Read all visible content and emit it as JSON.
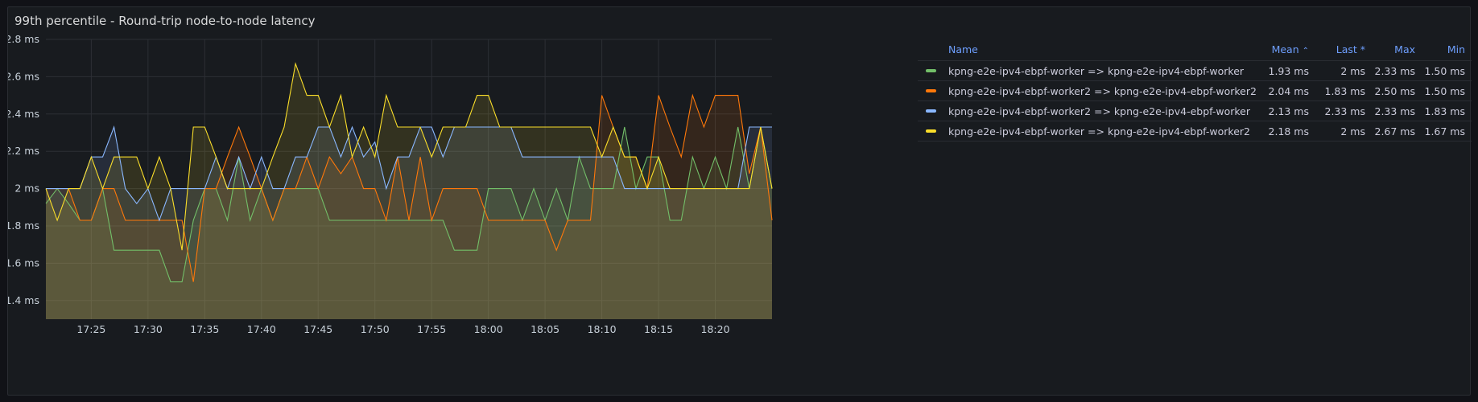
{
  "panel": {
    "title": "99th percentile - Round-trip node-to-node latency"
  },
  "chart_data": {
    "type": "area",
    "title": "99th percentile - Round-trip node-to-node latency",
    "unit": "ms",
    "ylim": [
      1.3,
      2.8
    ],
    "yticks": [
      1.4,
      1.6,
      1.8,
      2.0,
      2.2,
      2.4,
      2.6,
      2.8
    ],
    "ytick_labels": [
      "1.4 ms",
      "1.6 ms",
      "1.8 ms",
      "2 ms",
      "2.2 ms",
      "2.4 ms",
      "2.6 ms",
      "2.8 ms"
    ],
    "x_start": "17:21",
    "x_end": "18:20",
    "x_step_minutes": 1,
    "xtick_labels": [
      "17:25",
      "17:30",
      "17:35",
      "17:40",
      "17:45",
      "17:50",
      "17:55",
      "18:00",
      "18:05",
      "18:10",
      "18:15",
      "18:20"
    ],
    "grid": true,
    "legend_position": "right",
    "series": [
      {
        "name": "kpng-e2e-ipv4-ebpf-worker => kpng-e2e-ipv4-ebpf-worker",
        "color": "#73bf69",
        "values": [
          1.92,
          2.0,
          1.92,
          1.83,
          1.83,
          2.0,
          1.67,
          1.67,
          1.67,
          1.67,
          1.67,
          1.5,
          1.5,
          1.83,
          2.0,
          2.0,
          1.83,
          2.17,
          1.83,
          2.0,
          1.83,
          2.0,
          2.0,
          2.0,
          2.0,
          1.83,
          1.83,
          1.83,
          1.83,
          1.83,
          1.83,
          1.83,
          1.83,
          1.83,
          1.83,
          1.83,
          1.67,
          1.67,
          1.67,
          2.0,
          2.0,
          2.0,
          1.83,
          2.0,
          1.83,
          2.0,
          1.83,
          2.17,
          2.0,
          2.0,
          2.0,
          2.33,
          2.0,
          2.17,
          2.17,
          1.83,
          1.83,
          2.17,
          2.0,
          2.17,
          2.0,
          2.33,
          2.0,
          2.33,
          2.0
        ]
      },
      {
        "name": "kpng-e2e-ipv4-ebpf-worker2 => kpng-e2e-ipv4-ebpf-worker2",
        "color": "#ff780a",
        "values": [
          2.0,
          2.0,
          2.0,
          1.83,
          1.83,
          2.0,
          2.0,
          1.83,
          1.83,
          1.83,
          1.83,
          1.83,
          1.83,
          1.5,
          2.0,
          2.0,
          2.17,
          2.33,
          2.17,
          2.0,
          1.83,
          2.0,
          2.0,
          2.17,
          2.0,
          2.17,
          2.08,
          2.17,
          2.0,
          2.0,
          1.83,
          2.17,
          1.83,
          2.17,
          1.83,
          2.0,
          2.0,
          2.0,
          2.0,
          1.83,
          1.83,
          1.83,
          1.83,
          1.83,
          1.83,
          1.67,
          1.83,
          1.83,
          1.83,
          2.5,
          2.33,
          2.17,
          2.17,
          2.0,
          2.5,
          2.33,
          2.17,
          2.5,
          2.33,
          2.5,
          2.5,
          2.5,
          2.08,
          2.33,
          1.83
        ]
      },
      {
        "name": "kpng-e2e-ipv4-ebpf-worker2 => kpng-e2e-ipv4-ebpf-worker",
        "color": "#8ab8ff",
        "values": [
          2.0,
          2.0,
          2.0,
          2.0,
          2.17,
          2.17,
          2.33,
          2.0,
          1.92,
          2.0,
          1.83,
          2.0,
          2.0,
          2.0,
          2.0,
          2.17,
          2.0,
          2.17,
          2.0,
          2.17,
          2.0,
          2.0,
          2.17,
          2.17,
          2.33,
          2.33,
          2.17,
          2.33,
          2.17,
          2.25,
          2.0,
          2.17,
          2.17,
          2.33,
          2.33,
          2.17,
          2.33,
          2.33,
          2.33,
          2.33,
          2.33,
          2.33,
          2.17,
          2.17,
          2.17,
          2.17,
          2.17,
          2.17,
          2.17,
          2.17,
          2.17,
          2.0,
          2.0,
          2.0,
          2.0,
          2.0,
          2.0,
          2.0,
          2.0,
          2.0,
          2.0,
          2.0,
          2.33,
          2.33,
          2.33
        ]
      },
      {
        "name": "kpng-e2e-ipv4-ebpf-worker => kpng-e2e-ipv4-ebpf-worker2",
        "color": "#fade2a",
        "values": [
          2.0,
          1.83,
          2.0,
          2.0,
          2.17,
          2.0,
          2.17,
          2.17,
          2.17,
          2.0,
          2.17,
          2.0,
          1.67,
          2.33,
          2.33,
          2.17,
          2.0,
          2.0,
          2.0,
          2.0,
          2.17,
          2.33,
          2.67,
          2.5,
          2.5,
          2.33,
          2.5,
          2.17,
          2.33,
          2.17,
          2.5,
          2.33,
          2.33,
          2.33,
          2.17,
          2.33,
          2.33,
          2.33,
          2.5,
          2.5,
          2.33,
          2.33,
          2.33,
          2.33,
          2.33,
          2.33,
          2.33,
          2.33,
          2.33,
          2.17,
          2.33,
          2.17,
          2.17,
          2.0,
          2.17,
          2.0,
          2.0,
          2.0,
          2.0,
          2.0,
          2.0,
          2.0,
          2.0,
          2.33,
          2.0
        ]
      }
    ]
  },
  "legend": {
    "headers": {
      "name": "Name",
      "mean": "Mean",
      "last": "Last *",
      "max": "Max",
      "min": "Min"
    },
    "sort_indicator": "⌃",
    "rows": [
      {
        "name": "kpng-e2e-ipv4-ebpf-worker => kpng-e2e-ipv4-ebpf-worker",
        "color": "#73bf69",
        "mean": "1.93 ms",
        "last": "2 ms",
        "max": "2.33 ms",
        "min": "1.50 ms"
      },
      {
        "name": "kpng-e2e-ipv4-ebpf-worker2 => kpng-e2e-ipv4-ebpf-worker2",
        "color": "#ff780a",
        "mean": "2.04 ms",
        "last": "1.83 ms",
        "max": "2.50 ms",
        "min": "1.50 ms"
      },
      {
        "name": "kpng-e2e-ipv4-ebpf-worker2 => kpng-e2e-ipv4-ebpf-worker",
        "color": "#8ab8ff",
        "mean": "2.13 ms",
        "last": "2.33 ms",
        "max": "2.33 ms",
        "min": "1.83 ms"
      },
      {
        "name": "kpng-e2e-ipv4-ebpf-worker => kpng-e2e-ipv4-ebpf-worker2",
        "color": "#fade2a",
        "mean": "2.18 ms",
        "last": "2 ms",
        "max": "2.67 ms",
        "min": "1.67 ms"
      }
    ]
  }
}
